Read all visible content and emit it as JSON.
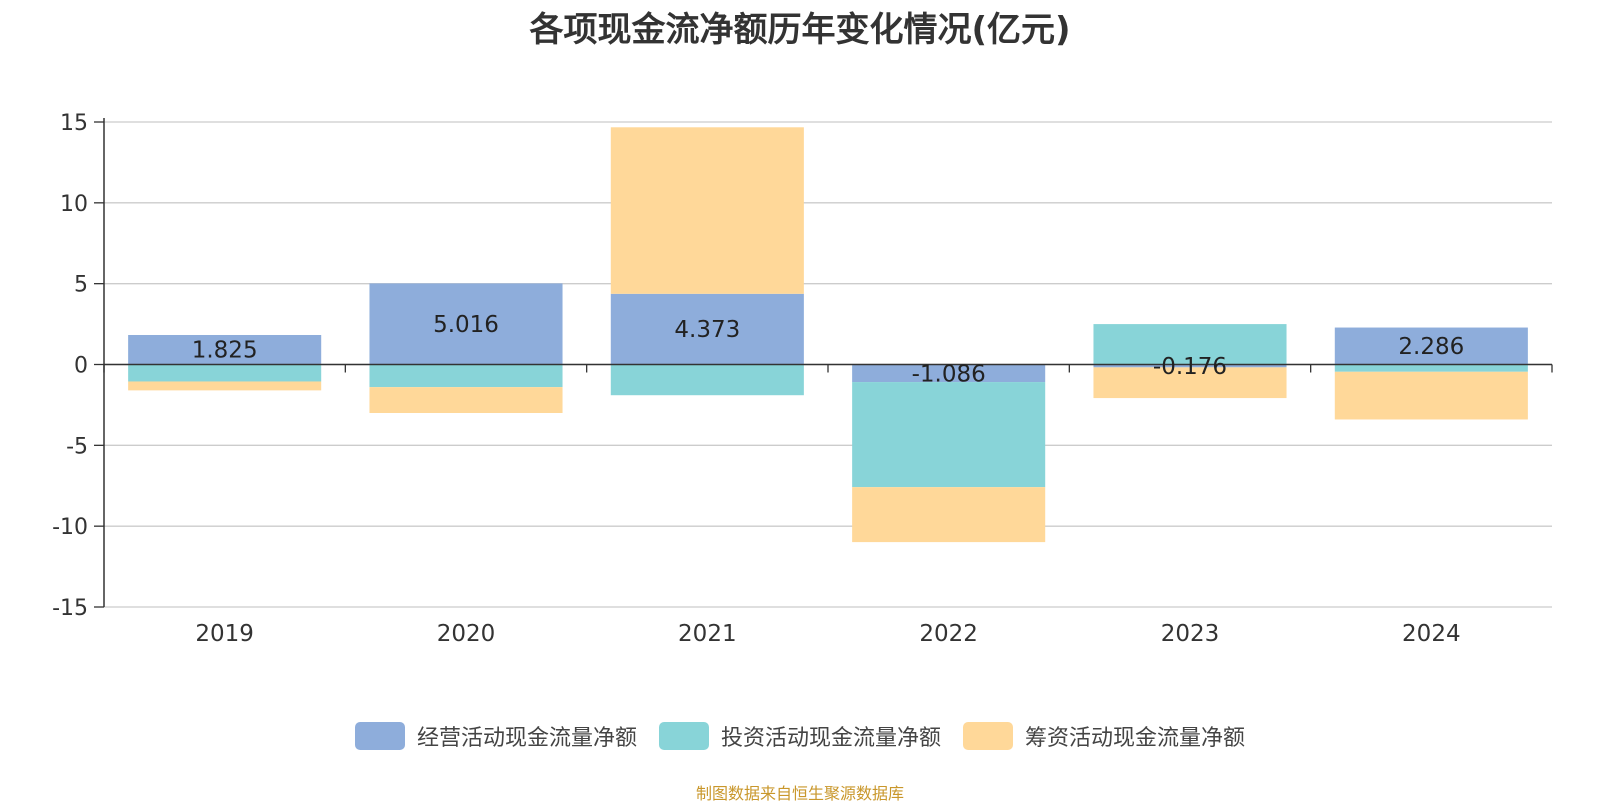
{
  "chart_data": {
    "type": "bar",
    "stacked": true,
    "title": "各项现金流净额历年变化情况(亿元)",
    "categories": [
      "2019",
      "2020",
      "2021",
      "2022",
      "2023",
      "2024"
    ],
    "ylim": [
      -15,
      15
    ],
    "yticks": [
      15,
      10,
      5,
      0,
      -5,
      -10,
      -15
    ],
    "ytick_labels": [
      "15",
      "10",
      "5",
      "0",
      "-5",
      "-10",
      "-15"
    ],
    "grid": true,
    "legend_position": "bottom",
    "series": [
      {
        "name": "经营活动现金流量净额",
        "color": "#8eaddb",
        "values": [
          1.825,
          5.016,
          4.373,
          -1.086,
          -0.176,
          2.286
        ],
        "labels": [
          "1.825",
          "5.016",
          "4.373",
          "-1.086",
          "-0.176",
          "2.286"
        ]
      },
      {
        "name": "投资活动现金流量净额",
        "color": "#88d4d8",
        "values": [
          -1.05,
          -1.4,
          -1.9,
          -6.5,
          2.5,
          -0.45
        ]
      },
      {
        "name": "筹资活动现金流量净额",
        "color": "#ffd899",
        "values": [
          -0.55,
          -1.6,
          10.3,
          -3.4,
          -1.9,
          -2.95
        ]
      }
    ]
  },
  "source_note": "制图数据来自恒生聚源数据库"
}
